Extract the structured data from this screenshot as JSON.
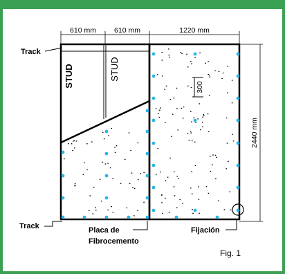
{
  "header": {
    "title": ""
  },
  "dimensions": {
    "top_left": "610 mm",
    "top_middle": "610 mm",
    "top_right": "1220 mm",
    "height": "2440 mm",
    "inner": "300"
  },
  "labels": {
    "track_top": "Track",
    "track_bottom": "Track",
    "stud_left": "STUD",
    "stud_right": "STUD",
    "panel_line1": "Placa de",
    "panel_line2": "Fibrocemento",
    "fastener": "Fijación",
    "figure": "Fig. 1"
  },
  "colors": {
    "frame": "#3aa053",
    "fastener_dot": "#29b6e8",
    "line": "#000000"
  }
}
